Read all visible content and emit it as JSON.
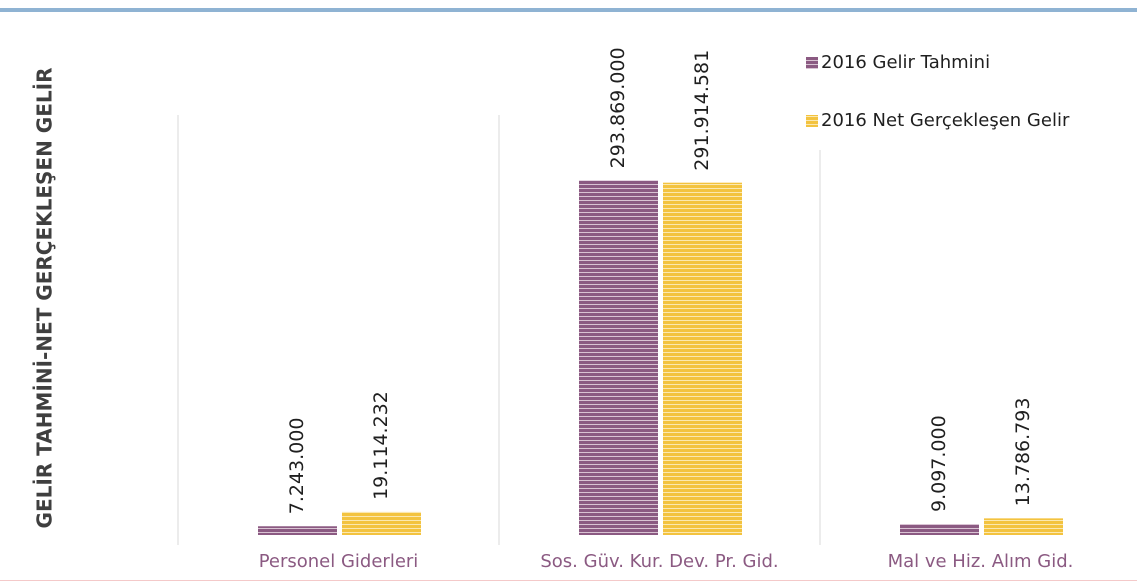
{
  "chart_data": {
    "type": "bar",
    "y_axis_label": "GELİR TAHMİNİ-NET GERÇEKLEŞEN GELİR",
    "categories": [
      "Personel Giderleri",
      "Sos. Güv. Kur. Dev. Pr. Gid.",
      "Mal ve Hiz. Alım Gid."
    ],
    "series": [
      {
        "name": "2016 Gelir Tahmini",
        "color": "#8b5a82",
        "values": [
          7243000,
          293869000,
          9097000
        ],
        "value_labels": [
          "7.243.000",
          "293.869.000",
          "9.097.000"
        ]
      },
      {
        "name": "2016 Net Gerçekleşen Gelir",
        "color": "#f3c33f",
        "values": [
          19114232,
          291914581,
          13786793
        ],
        "value_labels": [
          "19.114.232",
          "291.914.581",
          "13.786.793"
        ]
      }
    ],
    "ylim": [
      0,
      435000000
    ],
    "legend": "top-right"
  }
}
